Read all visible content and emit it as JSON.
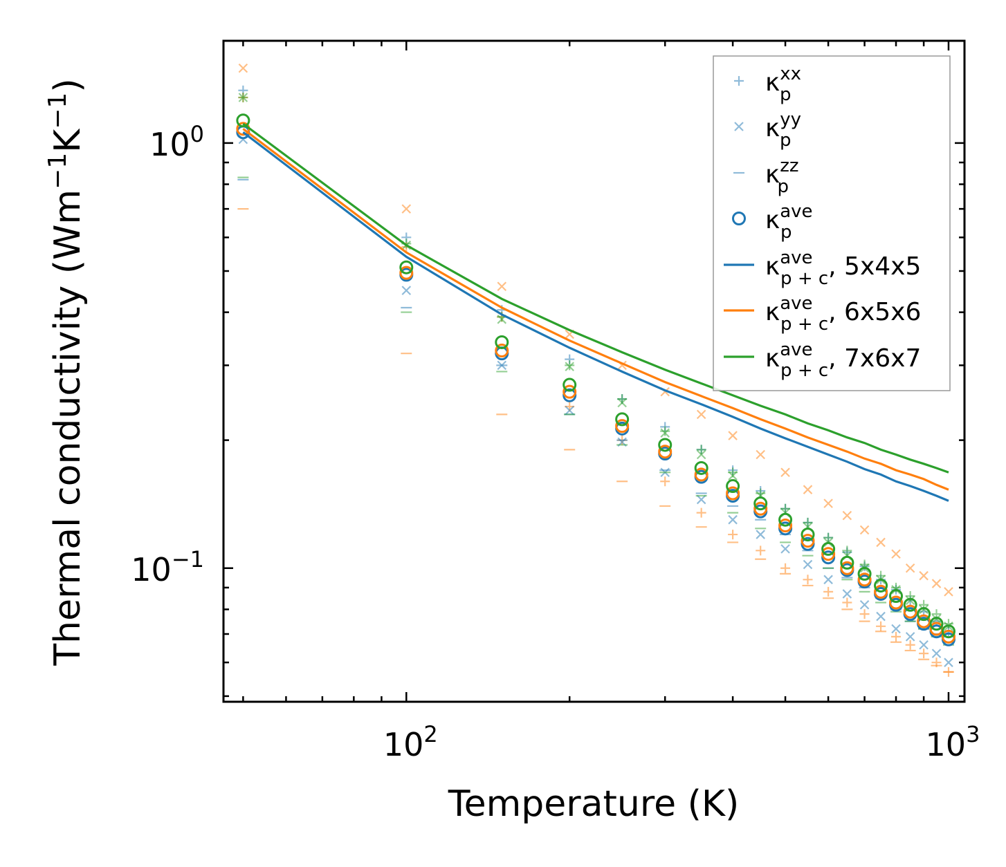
{
  "chart_data": {
    "type": "scatter",
    "title": "",
    "xlabel": "Temperature (K)",
    "ylabel_parts": {
      "pre": "Thermal conductivity (Wm",
      "sup1": "−1",
      "mid": "K",
      "sup2": "−1",
      "post": ")"
    },
    "xscale": "log",
    "yscale": "log",
    "xlim": [
      46,
      1070
    ],
    "ylim": [
      0.0485,
      1.74
    ],
    "x_ticks": [
      {
        "value": 100,
        "base": "10",
        "exp": "2"
      },
      {
        "value": 1000,
        "base": "10",
        "exp": "3"
      }
    ],
    "y_ticks": [
      {
        "value": 1,
        "base": "10",
        "exp": "0"
      },
      {
        "value": 0.1,
        "base": "10",
        "exp": "−1"
      }
    ],
    "colors": {
      "5x4x5": "#1f77b4",
      "6x5x6": "#ff7f0e",
      "7x6x7": "#2ca02c"
    },
    "x": [
      50,
      100,
      150,
      200,
      250,
      300,
      350,
      400,
      450,
      500,
      550,
      600,
      650,
      700,
      750,
      800,
      850,
      900,
      950,
      1000
    ],
    "series": [
      {
        "name": "κ_p^xx",
        "mesh": "5x4x5",
        "marker": "plus",
        "values": [
          1.33,
          0.6,
          0.405,
          0.31,
          0.25,
          0.215,
          0.19,
          0.17,
          0.152,
          0.138,
          0.128,
          0.118,
          0.109,
          0.101,
          0.094,
          0.089,
          0.084,
          0.079,
          0.075,
          0.071
        ]
      },
      {
        "name": "κ_p^yy",
        "mesh": "5x4x5",
        "marker": "x",
        "values": [
          1.02,
          0.45,
          0.3,
          0.235,
          0.198,
          0.168,
          0.145,
          0.13,
          0.12,
          0.111,
          0.102,
          0.094,
          0.087,
          0.082,
          0.077,
          0.072,
          0.069,
          0.066,
          0.063,
          0.06
        ]
      },
      {
        "name": "κ_p^zz",
        "mesh": "5x4x5",
        "marker": "hline",
        "values": [
          0.82,
          0.41,
          0.3,
          0.23,
          0.2,
          0.17,
          0.15,
          0.14,
          0.13,
          0.12,
          0.11,
          0.1,
          0.095,
          0.09,
          0.085,
          0.08,
          0.075,
          0.072,
          0.07,
          0.067
        ]
      },
      {
        "name": "κ_p^ave",
        "mesh": "5x4x5",
        "marker": "circle",
        "values": [
          1.06,
          0.49,
          0.32,
          0.255,
          0.213,
          0.186,
          0.164,
          0.148,
          0.136,
          0.124,
          0.114,
          0.106,
          0.099,
          0.093,
          0.087,
          0.082,
          0.078,
          0.074,
          0.071,
          0.068
        ]
      },
      {
        "name": "κ_p^xx",
        "mesh": "6x5x6",
        "marker": "plus",
        "values": [
          1.28,
          0.57,
          0.39,
          0.24,
          0.2,
          0.16,
          0.135,
          0.12,
          0.11,
          0.1,
          0.094,
          0.088,
          0.083,
          0.078,
          0.073,
          0.069,
          0.066,
          0.063,
          0.06,
          0.057
        ]
      },
      {
        "name": "κ_p^yy",
        "mesh": "6x5x6",
        "marker": "x",
        "values": [
          1.5,
          0.7,
          0.46,
          0.355,
          0.3,
          0.26,
          0.23,
          0.205,
          0.185,
          0.168,
          0.153,
          0.142,
          0.133,
          0.123,
          0.115,
          0.108,
          0.1,
          0.096,
          0.092,
          0.088
        ]
      },
      {
        "name": "κ_p^zz",
        "mesh": "6x5x6",
        "marker": "hline",
        "values": [
          0.7,
          0.32,
          0.23,
          0.19,
          0.16,
          0.14,
          0.125,
          0.115,
          0.105,
          0.097,
          0.091,
          0.085,
          0.08,
          0.075,
          0.071,
          0.067,
          0.064,
          0.061,
          0.059,
          0.057
        ]
      },
      {
        "name": "κ_p^ave",
        "mesh": "6x5x6",
        "marker": "circle",
        "values": [
          1.08,
          0.495,
          0.325,
          0.26,
          0.216,
          0.188,
          0.166,
          0.15,
          0.138,
          0.126,
          0.116,
          0.108,
          0.1,
          0.094,
          0.088,
          0.083,
          0.079,
          0.075,
          0.072,
          0.069
        ]
      },
      {
        "name": "κ_p^xx",
        "mesh": "7x6x7",
        "marker": "plus",
        "values": [
          1.28,
          0.58,
          0.39,
          0.3,
          0.25,
          0.21,
          0.19,
          0.168,
          0.15,
          0.138,
          0.128,
          0.118,
          0.11,
          0.102,
          0.096,
          0.09,
          0.086,
          0.082,
          0.078,
          0.074
        ]
      },
      {
        "name": "κ_p^yy",
        "mesh": "7x6x7",
        "marker": "x",
        "values": [
          1.28,
          0.575,
          0.385,
          0.298,
          0.245,
          0.208,
          0.185,
          0.165,
          0.148,
          0.135,
          0.125,
          0.115,
          0.107,
          0.1,
          0.094,
          0.089,
          0.084,
          0.08,
          0.076,
          0.073
        ]
      },
      {
        "name": "κ_p^zz",
        "mesh": "7x6x7",
        "marker": "hline",
        "values": [
          0.83,
          0.4,
          0.29,
          0.23,
          0.195,
          0.168,
          0.148,
          0.135,
          0.124,
          0.115,
          0.107,
          0.1,
          0.094,
          0.088,
          0.083,
          0.079,
          0.075,
          0.072,
          0.069,
          0.066
        ]
      },
      {
        "name": "κ_p^ave",
        "mesh": "7x6x7",
        "marker": "circle",
        "values": [
          1.13,
          0.51,
          0.34,
          0.27,
          0.224,
          0.195,
          0.172,
          0.156,
          0.142,
          0.13,
          0.12,
          0.111,
          0.103,
          0.097,
          0.091,
          0.086,
          0.082,
          0.078,
          0.074,
          0.071
        ]
      },
      {
        "name": "κ_p+c^ave, 5x4x5",
        "mesh": "5x4x5",
        "marker": "line",
        "values": [
          1.06,
          0.54,
          0.395,
          0.33,
          0.29,
          0.262,
          0.243,
          0.227,
          0.213,
          0.202,
          0.193,
          0.185,
          0.178,
          0.171,
          0.166,
          0.16,
          0.156,
          0.152,
          0.148,
          0.144
        ]
      },
      {
        "name": "κ_p+c^ave, 6x5x6",
        "mesh": "6x5x6",
        "marker": "line",
        "values": [
          1.08,
          0.553,
          0.41,
          0.343,
          0.303,
          0.274,
          0.254,
          0.238,
          0.224,
          0.213,
          0.203,
          0.195,
          0.188,
          0.181,
          0.176,
          0.17,
          0.166,
          0.162,
          0.157,
          0.153
        ]
      },
      {
        "name": "κ_p+c^ave, 7x6x7",
        "mesh": "7x6x7",
        "marker": "line",
        "values": [
          1.11,
          0.575,
          0.43,
          0.363,
          0.322,
          0.293,
          0.272,
          0.255,
          0.241,
          0.23,
          0.219,
          0.211,
          0.203,
          0.197,
          0.19,
          0.185,
          0.18,
          0.176,
          0.172,
          0.168
        ]
      }
    ],
    "legend": {
      "position": "top-right",
      "entries": [
        {
          "marker": "plus",
          "color": "#1f77b4",
          "sym": "κ",
          "sub": "p",
          "sup": "xx",
          "suffix": ""
        },
        {
          "marker": "x",
          "color": "#1f77b4",
          "sym": "κ",
          "sub": "p",
          "sup": "yy",
          "suffix": ""
        },
        {
          "marker": "hline",
          "color": "#1f77b4",
          "sym": "κ",
          "sub": "p",
          "sup": "zz",
          "suffix": ""
        },
        {
          "marker": "circle",
          "color": "#1f77b4",
          "sym": "κ",
          "sub": "p",
          "sup": "ave",
          "suffix": ""
        },
        {
          "marker": "line",
          "color": "#1f77b4",
          "sym": "κ",
          "sub": "p + c",
          "sup": "ave",
          "suffix": ", 5x4x5"
        },
        {
          "marker": "line",
          "color": "#ff7f0e",
          "sym": "κ",
          "sub": "p + c",
          "sup": "ave",
          "suffix": ", 6x5x6"
        },
        {
          "marker": "line",
          "color": "#2ca02c",
          "sym": "κ",
          "sub": "p + c",
          "sup": "ave",
          "suffix": ", 7x6x7"
        }
      ]
    }
  }
}
